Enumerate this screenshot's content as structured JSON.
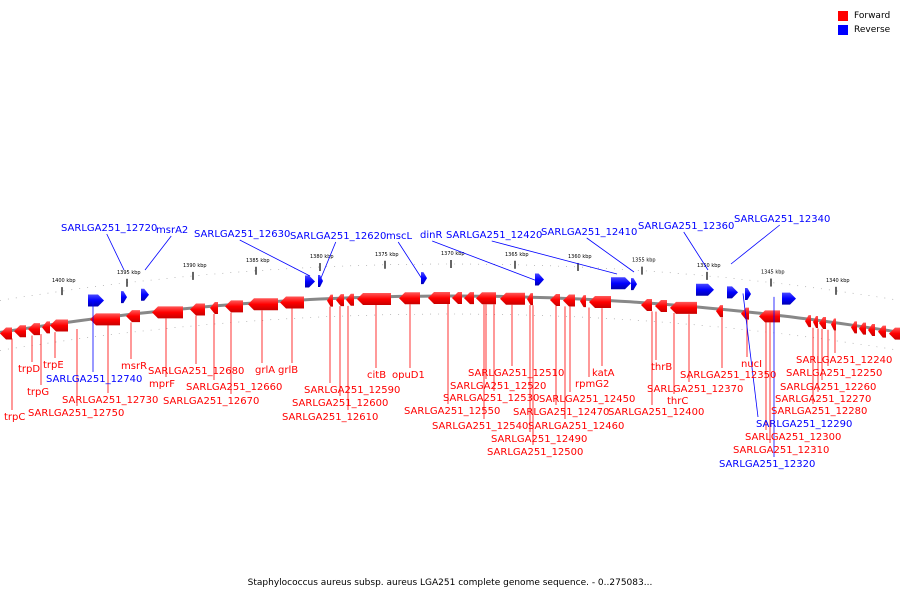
{
  "legend": [
    {
      "label": "Forward",
      "color": "#ff0000"
    },
    {
      "label": "Reverse",
      "color": "#0000ff"
    }
  ],
  "caption": "Staphylococcus aureus subsp. aureus LGA251 complete genome sequence. - 0..275083...",
  "ticks": [
    "1400 kbp",
    "1395 kbp",
    "1390 kbp",
    "1385 kbp",
    "1380 kbp",
    "1375 kbp",
    "1370 kbp",
    "1365 kbp",
    "1360 kbp",
    "1355 kbp",
    "1350 kbp",
    "1345 kbp",
    "1340 kbp"
  ],
  "upper_labels": [
    "SARLGA251_12720",
    "msrA2",
    "SARLGA251_12630",
    "SARLGA251_12620",
    "mscL",
    "dinR",
    "SARLGA251_12420",
    "SARLGA251_12410",
    "SARLGA251_12360",
    "SARLGA251_12340"
  ],
  "lower_labels": [
    "trpC",
    "trpD",
    "trpG",
    "trpE",
    "SARLGA251_12740",
    "SARLGA251_12750",
    "SARLGA251_12730",
    "mprF",
    "msrR",
    "SARLGA251_12680",
    "SARLGA251_12660",
    "SARLGA251_12670",
    "grlA",
    "grlB",
    "SARLGA251_12590",
    "SARLGA251_12600",
    "SARLGA251_12610",
    "citB",
    "opuD1",
    "SARLGA251_12550",
    "SARLGA251_12520",
    "SARLGA251_12530",
    "SARLGA251_12540",
    "SARLGA251_12510",
    "SARLGA251_12490",
    "SARLGA251_12500",
    "SARLGA251_12470",
    "SARLGA251_12460",
    "SARLGA251_12450",
    "rpmG2",
    "katA",
    "SARLGA251_12400",
    "thrB",
    "thrC",
    "SARLGA251_12370",
    "SARLGA251_12350",
    "nucI",
    "SARLGA251_12290",
    "SARLGA251_12300",
    "SARLGA251_12310",
    "SARLGA251_12320",
    "SARLGA251_12240",
    "SARLGA251_12250",
    "SARLGA251_12260",
    "SARLGA251_12270",
    "SARLGA251_12280"
  ]
}
